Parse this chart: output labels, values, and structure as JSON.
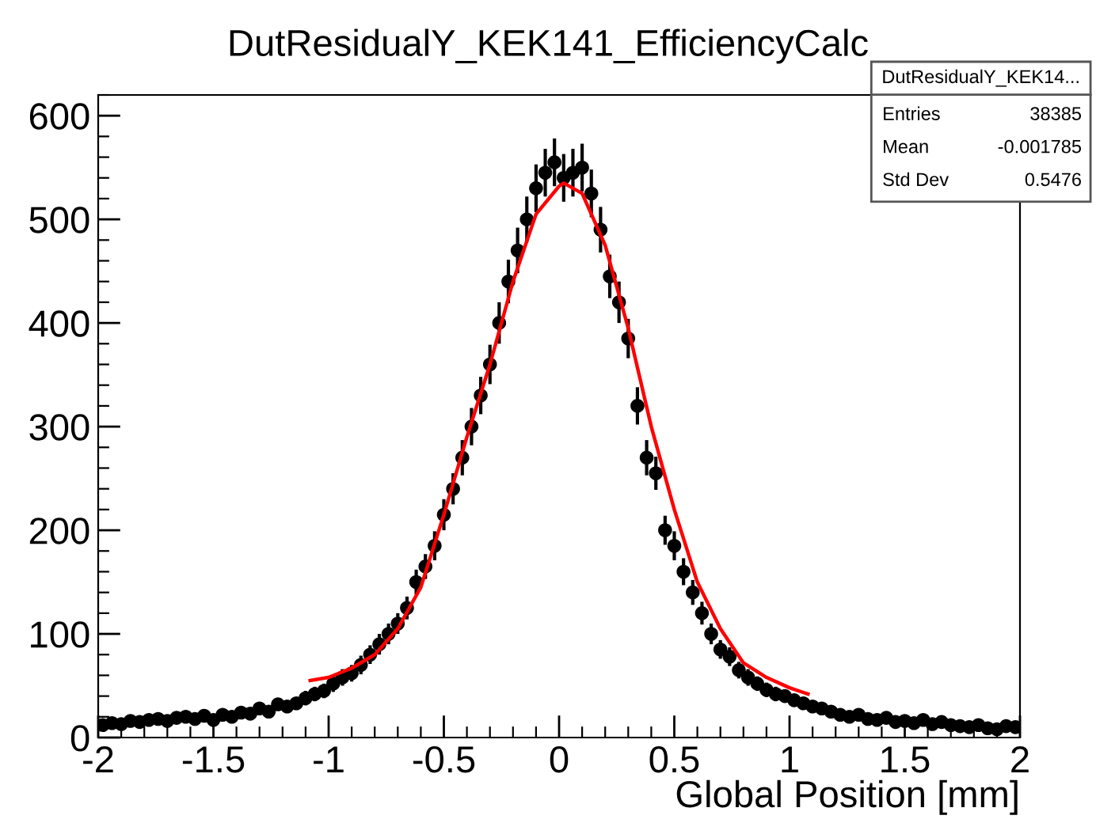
{
  "chart_data": {
    "type": "scatter",
    "title": "DutResidualY_KEK141_EfficiencyCalc",
    "xlabel": "Global Position [mm]",
    "xlim": [
      -2,
      2
    ],
    "xticks": [
      -2,
      -1.5,
      -1,
      -0.5,
      0,
      0.5,
      1,
      1.5,
      2
    ],
    "ylim": [
      0,
      620
    ],
    "yticks": [
      0,
      100,
      200,
      300,
      400,
      500,
      600
    ],
    "grid": false,
    "legend": false,
    "annotations": [
      "DutResidualY_KEK14...",
      "Entries",
      "38385",
      "Mean",
      "-0.001785",
      "Std Dev",
      "0.5476"
    ],
    "series": [
      {
        "color": "#000000",
        "marker": "circle",
        "x": [
          -1.98,
          -1.94,
          -1.9,
          -1.86,
          -1.82,
          -1.78,
          -1.74,
          -1.7,
          -1.66,
          -1.62,
          -1.58,
          -1.54,
          -1.5,
          -1.46,
          -1.42,
          -1.38,
          -1.34,
          -1.3,
          -1.26,
          -1.22,
          -1.18,
          -1.14,
          -1.1,
          -1.06,
          -1.02,
          -0.98,
          -0.94,
          -0.9,
          -0.86,
          -0.82,
          -0.78,
          -0.74,
          -0.7,
          -0.66,
          -0.62,
          -0.58,
          -0.54,
          -0.5,
          -0.46,
          -0.42,
          -0.38,
          -0.34,
          -0.3,
          -0.26,
          -0.22,
          -0.18,
          -0.14,
          -0.1,
          -0.06,
          -0.02,
          0.02,
          0.06,
          0.1,
          0.14,
          0.18,
          0.22,
          0.26,
          0.3,
          0.34,
          0.38,
          0.42,
          0.46,
          0.5,
          0.54,
          0.58,
          0.62,
          0.66,
          0.7,
          0.74,
          0.78,
          0.82,
          0.86,
          0.9,
          0.94,
          0.98,
          1.02,
          1.06,
          1.1,
          1.14,
          1.18,
          1.22,
          1.26,
          1.3,
          1.34,
          1.38,
          1.42,
          1.46,
          1.5,
          1.54,
          1.58,
          1.62,
          1.66,
          1.7,
          1.74,
          1.78,
          1.82,
          1.86,
          1.9,
          1.94,
          1.98
        ],
        "values": [
          12,
          14,
          13,
          16,
          15,
          17,
          18,
          16,
          19,
          20,
          18,
          21,
          17,
          22,
          20,
          24,
          23,
          28,
          25,
          32,
          30,
          33,
          38,
          42,
          45,
          52,
          58,
          62,
          70,
          80,
          90,
          100,
          110,
          125,
          150,
          165,
          185,
          215,
          240,
          270,
          300,
          330,
          360,
          400,
          440,
          470,
          500,
          530,
          545,
          555,
          540,
          545,
          550,
          525,
          490,
          445,
          420,
          385,
          320,
          270,
          255,
          200,
          185,
          160,
          140,
          120,
          100,
          85,
          78,
          65,
          58,
          52,
          46,
          42,
          40,
          36,
          33,
          30,
          28,
          25,
          22,
          20,
          22,
          18,
          17,
          19,
          15,
          16,
          14,
          17,
          13,
          15,
          12,
          11,
          10,
          12,
          9,
          8,
          11,
          10
        ],
        "errors": [
          4,
          4,
          4,
          4,
          4,
          4,
          4,
          4,
          4,
          5,
          4,
          5,
          4,
          5,
          5,
          5,
          5,
          5,
          5,
          5,
          5,
          5,
          7,
          7,
          7,
          8,
          8,
          8,
          9,
          9,
          10,
          10,
          10,
          11,
          12,
          12,
          14,
          15,
          15,
          17,
          18,
          18,
          19,
          20,
          21,
          22,
          22,
          23,
          23,
          23,
          23,
          23,
          23,
          23,
          22,
          21,
          20,
          19,
          18,
          17,
          16,
          14,
          14,
          13,
          12,
          11,
          10,
          9,
          9,
          8,
          8,
          7,
          7,
          7,
          6,
          6,
          6,
          5,
          5,
          5,
          5,
          4,
          5,
          4,
          4,
          4,
          4,
          4,
          4,
          4,
          4,
          4,
          3,
          3,
          3,
          3,
          3,
          3,
          3,
          3
        ]
      },
      {
        "type": "line",
        "color": "#ff0000",
        "marker": "none",
        "x": [
          -1.08,
          -1.0,
          -0.9,
          -0.8,
          -0.7,
          -0.6,
          -0.5,
          -0.4,
          -0.3,
          -0.2,
          -0.1,
          0.0,
          0.02,
          0.1,
          0.2,
          0.3,
          0.4,
          0.5,
          0.6,
          0.7,
          0.8,
          0.9,
          1.0,
          1.08
        ],
        "values": [
          55,
          58,
          67,
          80,
          105,
          145,
          215,
          290,
          360,
          440,
          505,
          532,
          535,
          525,
          475,
          395,
          300,
          220,
          150,
          105,
          72,
          58,
          48,
          42
        ]
      }
    ]
  }
}
